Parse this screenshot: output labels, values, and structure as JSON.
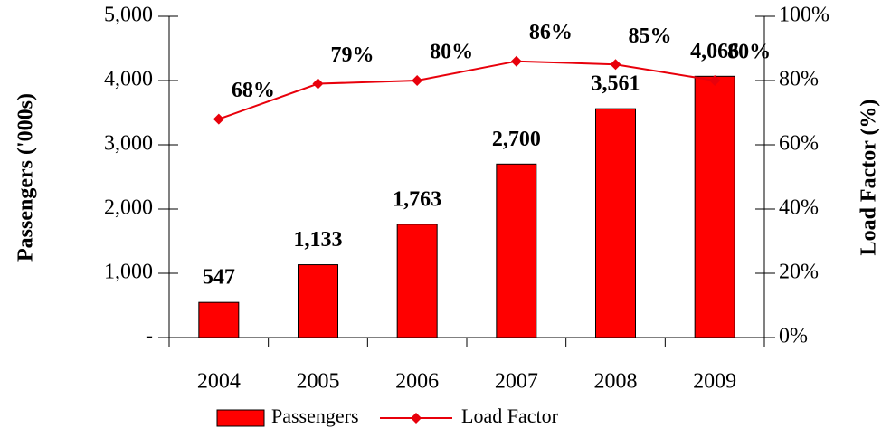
{
  "chart_data": {
    "type": "bar",
    "y_label": "Passengers ('000s)",
    "y2_label": "Load Factor (%)",
    "categories": [
      "2004",
      "2005",
      "2006",
      "2007",
      "2008",
      "2009"
    ],
    "series": [
      {
        "name": "Passengers",
        "type": "bar",
        "color": "#ff0000",
        "values": [
          547,
          1133,
          1763,
          2700,
          3561,
          4066
        ],
        "value_labels": [
          "547",
          "1,133",
          "1,763",
          "2,700",
          "3,561",
          "4,066"
        ]
      },
      {
        "name": "Load Factor",
        "type": "line",
        "axis": "y2",
        "color": "#e8000b",
        "values": [
          68,
          79,
          80,
          86,
          85,
          80
        ],
        "value_labels": [
          "68%",
          "79%",
          "80%",
          "86%",
          "85%",
          "80%"
        ]
      }
    ],
    "ylim": [
      0,
      5000
    ],
    "yticks": [
      {
        "value": 0,
        "label": "-"
      },
      {
        "value": 1000,
        "label": "1,000"
      },
      {
        "value": 2000,
        "label": "2,000"
      },
      {
        "value": 3000,
        "label": "3,000"
      },
      {
        "value": 4000,
        "label": "4,000"
      },
      {
        "value": 5000,
        "label": "5,000"
      }
    ],
    "y2lim": [
      0,
      100
    ],
    "y2ticks": [
      {
        "value": 0,
        "label": "0%"
      },
      {
        "value": 20,
        "label": "20%"
      },
      {
        "value": 40,
        "label": "40%"
      },
      {
        "value": 60,
        "label": "60%"
      },
      {
        "value": 80,
        "label": "80%"
      },
      {
        "value": 100,
        "label": "100%"
      }
    ],
    "legend": "bottom"
  }
}
